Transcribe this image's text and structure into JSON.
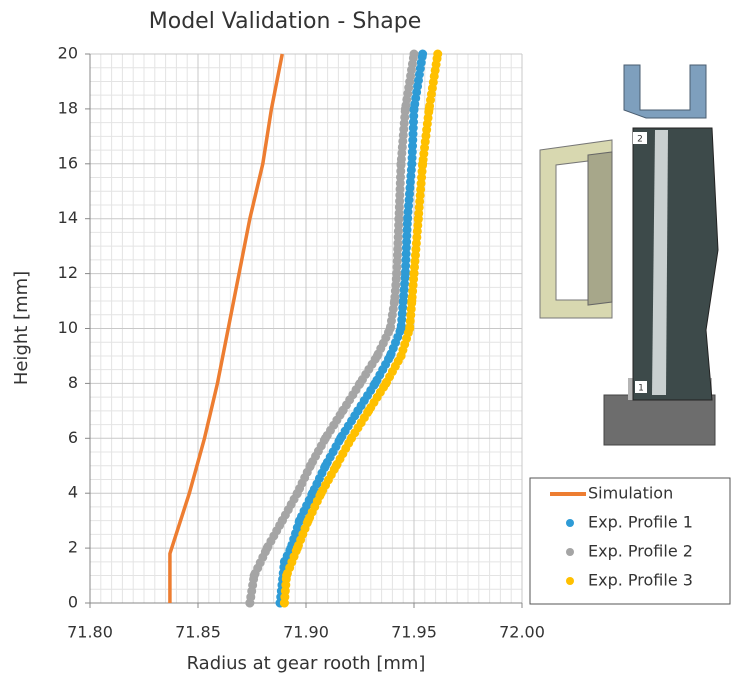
{
  "chart_data": {
    "type": "line",
    "title": "Model Validation - Shape",
    "x_label": "Radius at gear rooth [mm]",
    "y_label": "Height [mm]",
    "xlim": [
      71.8,
      72.0
    ],
    "xticks": [
      {
        "value": 71.8,
        "label": "71.80"
      },
      {
        "value": 71.85,
        "label": "71.85"
      },
      {
        "value": 71.9,
        "label": "71.90"
      },
      {
        "value": 71.95,
        "label": "71.95"
      },
      {
        "value": 72.0,
        "label": "72.00"
      }
    ],
    "ylim": [
      0,
      20
    ],
    "yticks": [
      0,
      2,
      4,
      6,
      8,
      10,
      12,
      14,
      16,
      18,
      20
    ],
    "grid": true,
    "minor_grid": true,
    "legend": "right",
    "annotations": [
      "2",
      "1"
    ],
    "series": [
      {
        "name": "Simulation",
        "color": "#ed7d31",
        "style": "line",
        "x": [
          71.837,
          71.837,
          71.846,
          71.853,
          71.859,
          71.864,
          71.869,
          71.874,
          71.88,
          71.884,
          71.889
        ],
        "values": [
          0,
          1.8,
          4,
          6,
          8,
          10,
          12,
          14,
          16,
          18,
          20
        ]
      },
      {
        "name": "Exp. Profile 1",
        "color": "#2e9bd6",
        "style": "dots",
        "x": [
          71.888,
          71.89,
          71.893,
          71.897,
          71.903,
          71.909,
          71.916,
          71.924,
          71.932,
          71.939,
          71.944,
          71.945,
          71.946,
          71.947,
          71.949,
          71.95,
          71.954
        ],
        "values": [
          0,
          1.5,
          2,
          3,
          4,
          5,
          6,
          7,
          8,
          9,
          10,
          11,
          12,
          14,
          16,
          18,
          20
        ]
      },
      {
        "name": "Exp. Profile 2",
        "color": "#a5a5a5",
        "style": "dots",
        "x": [
          71.874,
          71.876,
          71.882,
          71.889,
          71.896,
          71.902,
          71.909,
          71.917,
          71.925,
          71.933,
          71.939,
          71.941,
          71.942,
          71.943,
          71.944,
          71.946,
          71.95
        ],
        "values": [
          0,
          1,
          2,
          3,
          4,
          5,
          6,
          7,
          8,
          9,
          10,
          11,
          12,
          14,
          16,
          18,
          20
        ]
      },
      {
        "name": "Exp. Profile 3",
        "color": "#ffc000",
        "style": "dots",
        "x": [
          71.89,
          71.891,
          71.896,
          71.901,
          71.907,
          71.914,
          71.921,
          71.929,
          71.937,
          71.944,
          71.948,
          71.949,
          71.95,
          71.952,
          71.954,
          71.957,
          71.961
        ],
        "values": [
          0,
          1,
          2,
          3,
          4,
          5,
          6,
          7,
          8,
          9,
          10,
          11,
          12,
          14,
          16,
          18,
          20
        ]
      }
    ]
  }
}
